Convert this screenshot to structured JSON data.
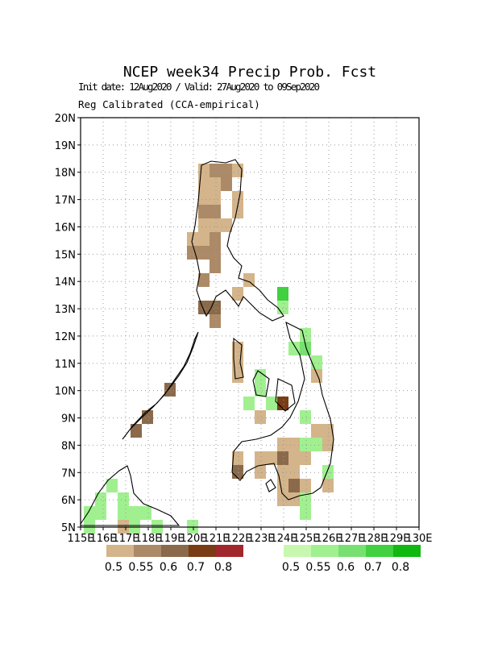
{
  "title": "NCEP week34 Precip Prob. Fcst",
  "subtitle": "Init date: 12Aug2020 / Valid: 27Aug2020 to 09Sep2020",
  "note": "Reg Calibrated (CCA-empirical)",
  "map": {
    "lat_ticks": [
      "20N",
      "19N",
      "18N",
      "17N",
      "16N",
      "15N",
      "14N",
      "13N",
      "12N",
      "11N",
      "10N",
      "9N",
      "8N",
      "7N",
      "6N",
      "5N"
    ],
    "lon_ticks": [
      "115E",
      "116E",
      "117E",
      "118E",
      "119E",
      "120E",
      "121E",
      "122E",
      "123E",
      "124E",
      "125E",
      "126E",
      "127E",
      "128E",
      "129E",
      "130E"
    ]
  },
  "legends": [
    {
      "colors": [
        "#d4b48a",
        "#ac8a68",
        "#8a6a4a",
        "#7a3c14",
        "#a0282c"
      ],
      "labels": [
        "0.5",
        "0.55",
        "0.6",
        "0.7",
        "0.8"
      ]
    },
    {
      "colors": [
        "#c8f8b0",
        "#a0f090",
        "#78e070",
        "#40d040",
        "#10b810"
      ],
      "labels": [
        "0.5",
        "0.55",
        "0.6",
        "0.7",
        "0.8"
      ]
    }
  ]
}
